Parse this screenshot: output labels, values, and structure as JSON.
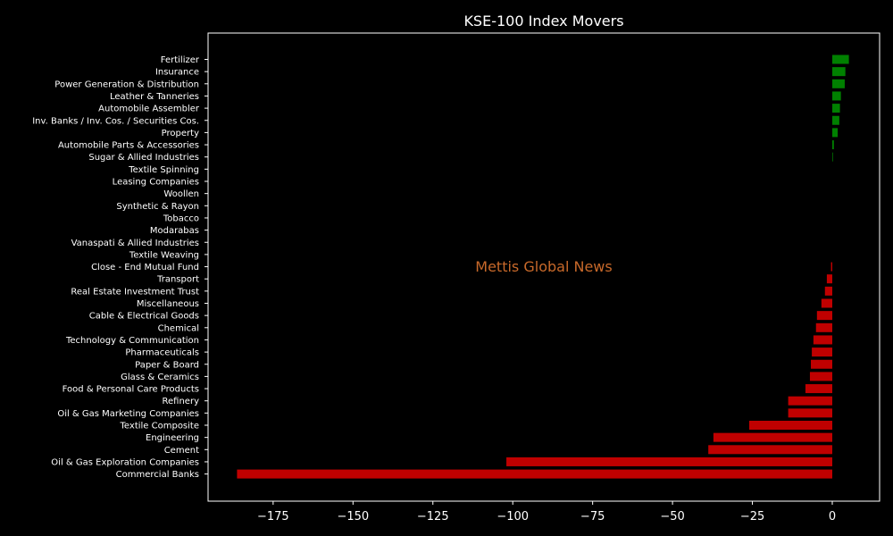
{
  "chart_data": {
    "type": "bar",
    "orientation": "horizontal",
    "title": "KSE-100 Index Movers",
    "watermark": "Mettis Global News",
    "xlabel": "",
    "ylabel": "",
    "xlim": [
      -195,
      15
    ],
    "grid": false,
    "legend": "none",
    "x_ticks": [
      -175,
      -150,
      -125,
      -100,
      -75,
      -50,
      -25,
      0
    ],
    "x_tick_labels": [
      "−175",
      "−150",
      "−125",
      "−100",
      "−75",
      "−50",
      "−25",
      "0"
    ],
    "colors": {
      "positive": "#008000",
      "negative": "#c00000",
      "background": "#000000",
      "text": "#ffffff",
      "watermark": "#c8692a"
    },
    "categories": [
      "Fertilizer",
      "Insurance",
      "Power Generation & Distribution",
      "Leather & Tanneries",
      "Automobile Assembler",
      "Inv. Banks / Inv. Cos. / Securities Cos.",
      "Property",
      "Automobile Parts & Accessories",
      "Sugar & Allied Industries",
      "Textile Spinning",
      "Leasing Companies",
      "Woollen",
      "Synthetic & Rayon",
      "Tobacco",
      "Modarabas",
      "Vanaspati & Allied Industries",
      "Textile Weaving",
      "Close - End Mutual Fund",
      "Transport",
      "Real Estate Investment Trust",
      "Miscellaneous",
      "Cable & Electrical Goods",
      "Chemical",
      "Technology & Communication",
      "Pharmaceuticals",
      "Paper & Board",
      "Glass & Ceramics",
      "Food & Personal Care Products",
      "Refinery",
      "Oil & Gas Marketing Companies",
      "Textile Composite",
      "Engineering",
      "Cement",
      "Oil & Gas Exploration Companies",
      "Commercial Banks"
    ],
    "values": [
      5.2,
      4.1,
      3.9,
      2.7,
      2.4,
      2.2,
      1.7,
      0.5,
      0.2,
      0,
      0,
      0,
      0,
      0,
      0,
      0,
      0,
      -0.4,
      -1.7,
      -2.3,
      -3.4,
      -4.8,
      -5.1,
      -5.9,
      -6.4,
      -6.7,
      -7.0,
      -8.4,
      -13.8,
      -13.8,
      -26.0,
      -37.2,
      -38.8,
      -102.0,
      -186.3
    ]
  }
}
